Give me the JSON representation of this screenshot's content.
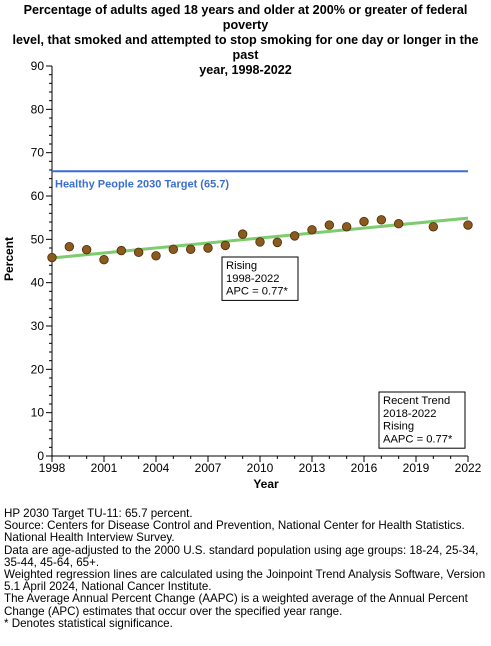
{
  "chart_data": {
    "type": "scatter",
    "title": "Percentage of adults aged 18 years and older at 200% or greater of federal poverty\nlevel, that smoked and attempted to stop smoking for one day or longer in the past\nyear, 1998-2022",
    "xlabel": "Year",
    "ylabel": "Percent",
    "xlim": [
      1998,
      2022
    ],
    "ylim": [
      0,
      90
    ],
    "x_ticks": [
      1998,
      2001,
      2004,
      2007,
      2010,
      2013,
      2016,
      2019,
      2022
    ],
    "x_tick_labels": [
      "1998",
      "2001",
      "2004",
      "2007",
      "2010",
      "2013",
      "2016",
      "2019",
      "2022"
    ],
    "y_ticks": [
      0,
      10,
      20,
      30,
      40,
      50,
      60,
      70,
      80,
      90
    ],
    "y_tick_labels": [
      "0",
      "10",
      "20",
      "30",
      "40",
      "50",
      "60",
      "70",
      "80",
      "90"
    ],
    "grid": false,
    "series": [
      {
        "x": [
          1998,
          1999,
          2000,
          2001,
          2002,
          2003,
          2004,
          2005,
          2006,
          2007,
          2008,
          2009,
          2010,
          2011,
          2012,
          2013,
          2014,
          2015,
          2016,
          2017,
          2018,
          2020,
          2022
        ],
        "y": [
          45.8,
          48.3,
          47.6,
          45.3,
          47.4,
          47.0,
          46.2,
          47.7,
          47.7,
          48.0,
          48.6,
          51.2,
          49.4,
          49.3,
          50.8,
          52.2,
          53.3,
          52.9,
          54.1,
          54.5,
          53.6,
          52.9,
          53.3
        ],
        "color": "#8B5A1E"
      }
    ],
    "trend_line": {
      "x": [
        1998,
        2022
      ],
      "y": [
        45.7,
        54.9
      ],
      "color": "#7DCC6E"
    },
    "target_line": {
      "y": 65.7,
      "label": "Healthy People 2030 Target (65.7)",
      "color": "#3A6FD0"
    },
    "annotations": [
      {
        "lines": [
          "Rising",
          "1998-2022",
          "APC =  0.77*"
        ]
      },
      {
        "lines": [
          "Recent Trend",
          "2018-2022",
          "Rising",
          "AAPC =  0.77*"
        ]
      }
    ]
  },
  "notes": [
    "HP 2030 Target TU-11: 65.7 percent.",
    "Source: Centers for Disease Control and Prevention, National Center for Health Statistics. National Health Interview Survey.",
    "Data are age-adjusted to the 2000 U.S. standard population using age groups: 18-24, 25-34, 35-44, 45-64, 65+.",
    "Weighted regression lines are calculated using the Joinpoint Trend Analysis Software, Version 5.1 April 2024, National Cancer Institute.",
    "The Average Annual Percent Change (AAPC) is a weighted average of the Annual Percent Change (APC) estimates that occur over the specified year range.",
    "* Denotes statistical significance."
  ]
}
